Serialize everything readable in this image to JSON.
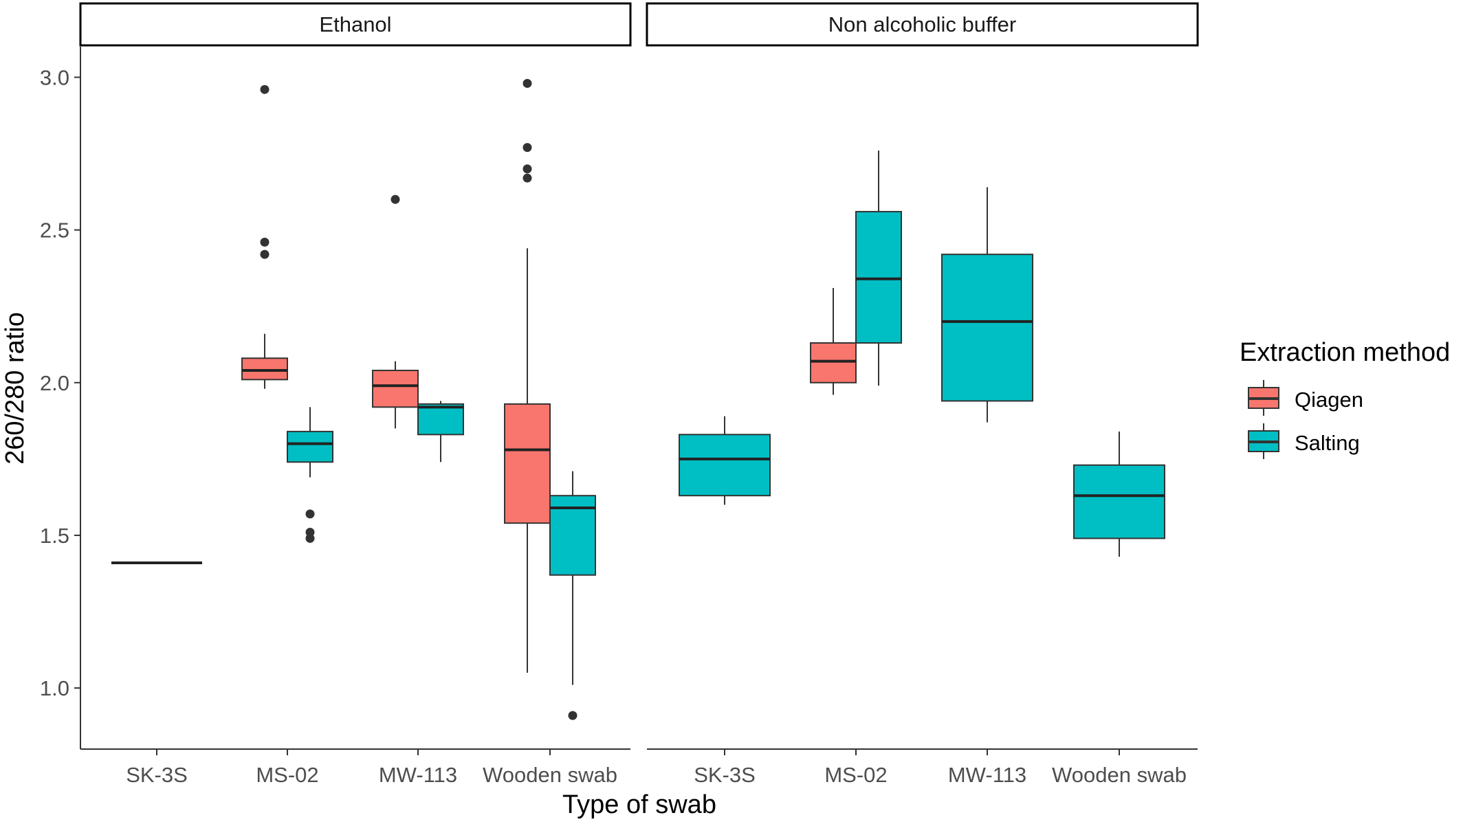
{
  "chart_data": {
    "type": "boxplot",
    "xlabel": "Type of swab",
    "ylabel": "260/280 ratio",
    "ylim": [
      0.8,
      3.1
    ],
    "yticks": [
      1.0,
      1.5,
      2.0,
      2.5,
      3.0
    ],
    "ytick_labels": [
      "1.0",
      "1.5",
      "2.0",
      "2.5",
      "3.0"
    ],
    "categories": [
      "SK-3S",
      "MS-02",
      "MW-113",
      "Wooden swab"
    ],
    "grid": false,
    "legend": {
      "title": "Extraction method",
      "placement": "right",
      "entries": [
        {
          "label": "Qiagen",
          "color": "#F8766D"
        },
        {
          "label": "Salting",
          "color": "#00BFC4"
        }
      ]
    },
    "panels": [
      {
        "strip": "Ethanol",
        "boxes": [
          {
            "category": "SK-3S",
            "group": "Salting",
            "slot": "full",
            "lower_whisker": 1.41,
            "q1": 1.41,
            "median": 1.41,
            "q3": 1.41,
            "upper_whisker": 1.41,
            "outliers": []
          },
          {
            "category": "MS-02",
            "group": "Qiagen",
            "slot": "left",
            "lower_whisker": 1.98,
            "q1": 2.01,
            "median": 2.04,
            "q3": 2.08,
            "upper_whisker": 2.16,
            "outliers": [
              2.42,
              2.46,
              2.96
            ]
          },
          {
            "category": "MS-02",
            "group": "Salting",
            "slot": "right",
            "lower_whisker": 1.69,
            "q1": 1.74,
            "median": 1.8,
            "q3": 1.84,
            "upper_whisker": 1.92,
            "outliers": [
              1.49,
              1.51,
              1.57
            ]
          },
          {
            "category": "MW-113",
            "group": "Qiagen",
            "slot": "left",
            "lower_whisker": 1.85,
            "q1": 1.92,
            "median": 1.99,
            "q3": 2.04,
            "upper_whisker": 2.07,
            "outliers": [
              2.6
            ]
          },
          {
            "category": "MW-113",
            "group": "Salting",
            "slot": "right",
            "lower_whisker": 1.74,
            "q1": 1.83,
            "median": 1.92,
            "q3": 1.93,
            "upper_whisker": 1.94,
            "outliers": []
          },
          {
            "category": "Wooden swab",
            "group": "Qiagen",
            "slot": "left",
            "lower_whisker": 1.05,
            "q1": 1.54,
            "median": 1.78,
            "q3": 1.93,
            "upper_whisker": 2.44,
            "outliers": [
              2.67,
              2.7,
              2.77,
              2.98
            ]
          },
          {
            "category": "Wooden swab",
            "group": "Salting",
            "slot": "right",
            "lower_whisker": 1.01,
            "q1": 1.37,
            "median": 1.59,
            "q3": 1.63,
            "upper_whisker": 1.71,
            "outliers": [
              0.91
            ]
          }
        ]
      },
      {
        "strip": "Non alcoholic buffer",
        "boxes": [
          {
            "category": "SK-3S",
            "group": "Salting",
            "slot": "full",
            "lower_whisker": 1.6,
            "q1": 1.63,
            "median": 1.75,
            "q3": 1.83,
            "upper_whisker": 1.89,
            "outliers": []
          },
          {
            "category": "MS-02",
            "group": "Qiagen",
            "slot": "left",
            "lower_whisker": 1.96,
            "q1": 2.0,
            "median": 2.07,
            "q3": 2.13,
            "upper_whisker": 2.31,
            "outliers": []
          },
          {
            "category": "MS-02",
            "group": "Salting",
            "slot": "right",
            "lower_whisker": 1.99,
            "q1": 2.13,
            "median": 2.34,
            "q3": 2.56,
            "upper_whisker": 2.76,
            "outliers": []
          },
          {
            "category": "MW-113",
            "group": "Salting",
            "slot": "full",
            "lower_whisker": 1.87,
            "q1": 1.94,
            "median": 2.2,
            "q3": 2.42,
            "upper_whisker": 2.64,
            "outliers": []
          },
          {
            "category": "Wooden swab",
            "group": "Salting",
            "slot": "full",
            "lower_whisker": 1.43,
            "q1": 1.49,
            "median": 1.63,
            "q3": 1.73,
            "upper_whisker": 1.84,
            "outliers": []
          }
        ]
      }
    ]
  }
}
